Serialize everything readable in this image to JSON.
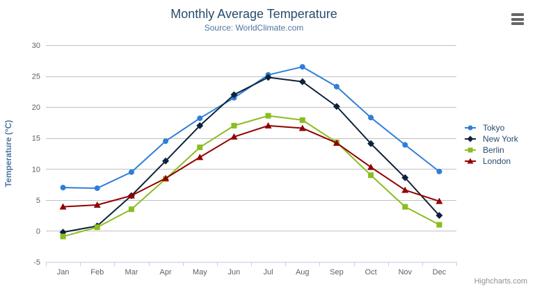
{
  "chart_data": {
    "type": "line",
    "title": "Monthly Average Temperature",
    "subtitle": "Source: WorldClimate.com",
    "xlabel": "",
    "ylabel": "Temperature (°C)",
    "categories": [
      "Jan",
      "Feb",
      "Mar",
      "Apr",
      "May",
      "Jun",
      "Jul",
      "Aug",
      "Sep",
      "Oct",
      "Nov",
      "Dec"
    ],
    "ylim": [
      -5,
      30
    ],
    "yticks": [
      -5,
      0,
      5,
      10,
      15,
      20,
      25,
      30
    ],
    "grid": "horizontal",
    "legend_position": "right",
    "series": [
      {
        "name": "Tokyo",
        "color": "#2f7ed8",
        "marker": "circle",
        "values": [
          7.0,
          6.9,
          9.5,
          14.5,
          18.2,
          21.5,
          25.2,
          26.5,
          23.3,
          18.3,
          13.9,
          9.6
        ]
      },
      {
        "name": "New York",
        "color": "#0d233a",
        "marker": "diamond",
        "values": [
          -0.2,
          0.8,
          5.7,
          11.3,
          17.0,
          22.0,
          24.8,
          24.1,
          20.1,
          14.1,
          8.6,
          2.5
        ]
      },
      {
        "name": "Berlin",
        "color": "#8bbc21",
        "marker": "square",
        "values": [
          -0.9,
          0.6,
          3.5,
          8.4,
          13.5,
          17.0,
          18.6,
          17.9,
          14.3,
          9.0,
          3.9,
          1.0
        ]
      },
      {
        "name": "London",
        "color": "#910000",
        "marker": "triangle",
        "values": [
          3.9,
          4.2,
          5.7,
          8.5,
          11.9,
          15.2,
          17.0,
          16.6,
          14.2,
          10.3,
          6.6,
          4.8
        ]
      }
    ]
  },
  "header": {
    "menu_icon": "hamburger-menu"
  },
  "credits": {
    "label": "Highcharts.com"
  },
  "colors": {
    "title": "#274b6d",
    "subtitle": "#4d759e",
    "axis_label": "#606060",
    "axis_title": "#4d759e",
    "grid": "#c0c0c0",
    "axis_line": "#c0d0e0",
    "legend_text": "#274b6d",
    "credit": "#909090",
    "menu_icon": "#666666"
  }
}
